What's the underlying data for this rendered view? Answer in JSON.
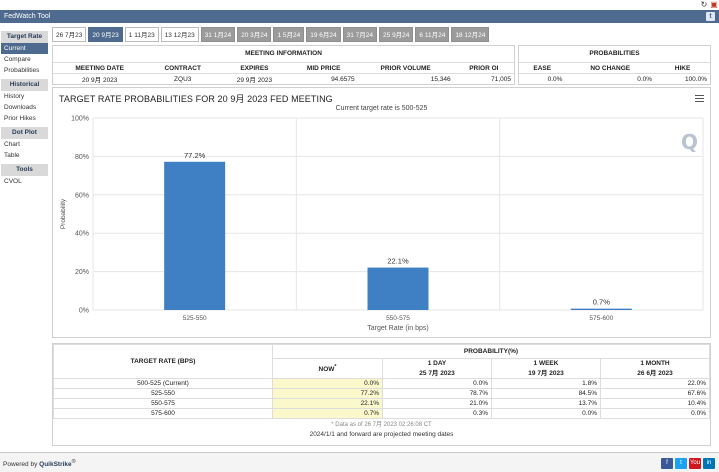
{
  "app": {
    "title": "FedWatch Tool"
  },
  "date_tabs": [
    "26 7月23",
    "20 9月23",
    "1 11月23",
    "13 12月23",
    "31 1月24",
    "20 3月24",
    "1 5月24",
    "19 6月24",
    "31 7月24",
    "25 9月24",
    "6 11月24",
    "18 12月24"
  ],
  "sidebar": {
    "sections": [
      {
        "header": "Target Rate",
        "items": [
          "Current",
          "Compare",
          "Probabilities"
        ]
      },
      {
        "header": "Historical",
        "items": [
          "History",
          "Downloads",
          "Prior Hikes"
        ]
      },
      {
        "header": "Dot Plot",
        "items": [
          "Chart",
          "Table"
        ]
      },
      {
        "header": "Tools",
        "items": [
          "CVOL"
        ]
      }
    ]
  },
  "meeting_info": {
    "header": "MEETING INFORMATION",
    "columns": [
      "MEETING DATE",
      "CONTRACT",
      "EXPIRES",
      "MID PRICE",
      "PRIOR VOLUME",
      "PRIOR OI"
    ],
    "row": [
      "20 9月 2023",
      "ZQU3",
      "29 9月 2023",
      "94.6575",
      "15,346",
      "71,005"
    ]
  },
  "probabilities_panel": {
    "header": "PROBABILITIES",
    "columns": [
      "EASE",
      "NO CHANGE",
      "HIKE"
    ],
    "row": [
      "0.0%",
      "0.0%",
      "100.0%"
    ]
  },
  "chart": {
    "title": "TARGET RATE PROBABILITIES FOR 20 9月 2023 FED MEETING",
    "subtitle": "Current target rate is 500-525",
    "watermark": "Q"
  },
  "chart_data": {
    "type": "bar",
    "title": "TARGET RATE PROBABILITIES FOR 20 9月 2023 FED MEETING",
    "subtitle": "Current target rate is 500-525",
    "categories": [
      "525-550",
      "550-575",
      "575-600"
    ],
    "values": [
      77.2,
      22.1,
      0.7
    ],
    "data_labels": [
      "77.2%",
      "22.1%",
      "0.7%"
    ],
    "xlabel": "Target Rate (in bps)",
    "ylabel": "Probability",
    "yticks": [
      "0%",
      "20%",
      "40%",
      "60%",
      "80%",
      "100%"
    ],
    "ylim": [
      0,
      100
    ],
    "grid": true,
    "bar_color": "#3f7fc3"
  },
  "prob_table": {
    "col_target": "TARGET RATE (BPS)",
    "col_prob": "PROBABILITY(%)",
    "now_label": "NOW",
    "now_marker": "*",
    "periods": [
      {
        "label": "1 DAY",
        "date": "25 7月 2023"
      },
      {
        "label": "1 WEEK",
        "date": "19 7月 2023"
      },
      {
        "label": "1 MONTH",
        "date": "26 6月 2023"
      }
    ],
    "rows": [
      {
        "rate": "500-525 (Current)",
        "now": "0.0%",
        "d1": "0.0%",
        "w1": "1.8%",
        "m1": "22.0%"
      },
      {
        "rate": "525-550",
        "now": "77.2%",
        "d1": "78.7%",
        "w1": "84.5%",
        "m1": "67.6%"
      },
      {
        "rate": "550-575",
        "now": "22.1%",
        "d1": "21.0%",
        "w1": "13.7%",
        "m1": "10.4%"
      },
      {
        "rate": "575-600",
        "now": "0.7%",
        "d1": "0.3%",
        "w1": "0.0%",
        "m1": "0.0%"
      }
    ],
    "note": "* Data as of 26 7月 2023 02:26:08 CT",
    "footer_note": "2024/1/1 and forward are projected meeting dates"
  },
  "footer": {
    "powered_prefix": "Powered by",
    "powered_brand": "QuikStrike",
    "powered_mark": "®",
    "social": [
      "f",
      "t",
      "You",
      "in"
    ]
  }
}
